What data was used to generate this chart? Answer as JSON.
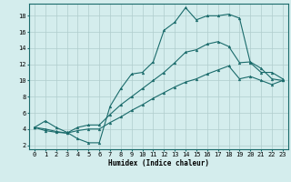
{
  "xlabel": "Humidex (Indice chaleur)",
  "ylabel": "",
  "xlim": [
    -0.5,
    23.5
  ],
  "ylim": [
    1.5,
    19.5
  ],
  "xticks": [
    0,
    1,
    2,
    3,
    4,
    5,
    6,
    7,
    8,
    9,
    10,
    11,
    12,
    13,
    14,
    15,
    16,
    17,
    18,
    19,
    20,
    21,
    22,
    23
  ],
  "yticks": [
    2,
    4,
    6,
    8,
    10,
    12,
    14,
    16,
    18
  ],
  "background_color": "#d4eded",
  "grid_color": "#b0cccc",
  "line_color": "#1a6b6b",
  "curve_max": [
    [
      0,
      4.2
    ],
    [
      1,
      5.0
    ],
    [
      2,
      4.2
    ],
    [
      3,
      3.6
    ],
    [
      4,
      2.8
    ],
    [
      5,
      2.3
    ],
    [
      6,
      2.3
    ],
    [
      7,
      6.8
    ],
    [
      8,
      9.0
    ],
    [
      9,
      10.8
    ],
    [
      10,
      11.0
    ],
    [
      11,
      12.3
    ],
    [
      12,
      16.2
    ],
    [
      13,
      17.2
    ],
    [
      14,
      19.0
    ],
    [
      15,
      17.5
    ],
    [
      16,
      18.0
    ],
    [
      17,
      18.0
    ],
    [
      18,
      18.2
    ],
    [
      19,
      17.7
    ],
    [
      20,
      12.2
    ],
    [
      21,
      11.0
    ],
    [
      22,
      11.0
    ],
    [
      23,
      10.2
    ]
  ],
  "curve_mean": [
    [
      0,
      4.2
    ],
    [
      1,
      4.0
    ],
    [
      2,
      3.7
    ],
    [
      3,
      3.5
    ],
    [
      4,
      4.2
    ],
    [
      5,
      4.5
    ],
    [
      6,
      4.5
    ],
    [
      7,
      5.8
    ],
    [
      8,
      7.0
    ],
    [
      9,
      8.0
    ],
    [
      10,
      9.0
    ],
    [
      11,
      10.0
    ],
    [
      12,
      11.0
    ],
    [
      13,
      12.2
    ],
    [
      14,
      13.5
    ],
    [
      15,
      13.8
    ],
    [
      16,
      14.5
    ],
    [
      17,
      14.8
    ],
    [
      18,
      14.2
    ],
    [
      19,
      12.2
    ],
    [
      20,
      12.3
    ],
    [
      21,
      11.5
    ],
    [
      22,
      10.2
    ],
    [
      23,
      10.0
    ]
  ],
  "curve_min": [
    [
      0,
      4.2
    ],
    [
      1,
      3.8
    ],
    [
      2,
      3.6
    ],
    [
      3,
      3.5
    ],
    [
      4,
      3.8
    ],
    [
      5,
      4.0
    ],
    [
      6,
      4.0
    ],
    [
      7,
      4.8
    ],
    [
      8,
      5.5
    ],
    [
      9,
      6.3
    ],
    [
      10,
      7.0
    ],
    [
      11,
      7.8
    ],
    [
      12,
      8.5
    ],
    [
      13,
      9.2
    ],
    [
      14,
      9.8
    ],
    [
      15,
      10.2
    ],
    [
      16,
      10.8
    ],
    [
      17,
      11.3
    ],
    [
      18,
      11.8
    ],
    [
      19,
      10.2
    ],
    [
      20,
      10.5
    ],
    [
      21,
      10.0
    ],
    [
      22,
      9.5
    ],
    [
      23,
      10.0
    ]
  ]
}
